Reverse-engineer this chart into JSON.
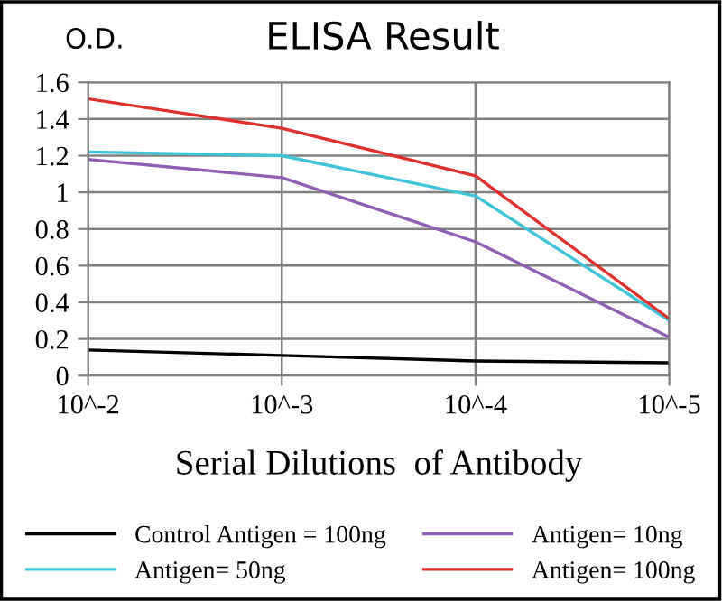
{
  "chart_data": {
    "type": "line",
    "title": "ELISA Result",
    "ylabel": "O.D.",
    "xlabel": "Serial Dilutions  of Antibody",
    "categories": [
      "10^-2",
      "10^-3",
      "10^-4",
      "10^-5"
    ],
    "series": [
      {
        "name": "Control Antigen = 100ng",
        "color": "#000000",
        "values": [
          0.14,
          0.11,
          0.08,
          0.07
        ]
      },
      {
        "name": "Antigen= 10ng",
        "color": "#8e5fb5",
        "values": [
          1.18,
          1.08,
          0.73,
          0.21
        ]
      },
      {
        "name": "Antigen= 50ng",
        "color": "#3fc3d8",
        "values": [
          1.22,
          1.2,
          0.98,
          0.3
        ]
      },
      {
        "name": "Antigen= 100ng",
        "color": "#e0302c",
        "values": [
          1.51,
          1.35,
          1.09,
          0.31
        ]
      }
    ],
    "ylim": [
      0,
      1.6
    ],
    "yticks": [
      0,
      0.2,
      0.4,
      0.6,
      0.8,
      1,
      1.2,
      1.4,
      1.6
    ],
    "grid": true,
    "legend": "bottom",
    "marker": "none",
    "line_style": "solid"
  }
}
